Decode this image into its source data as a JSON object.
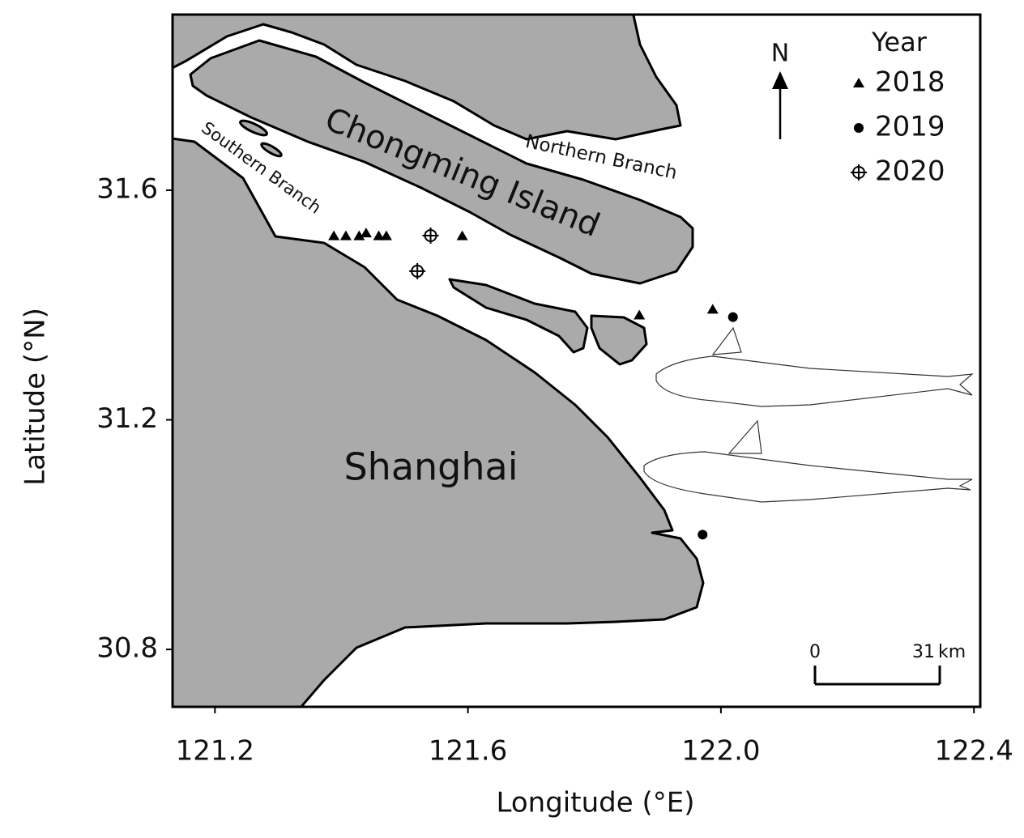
{
  "chart_data": {
    "type": "scatter",
    "x_label": "Longitude (°E)",
    "y_label": "Latitude (°N)",
    "xlim": [
      121.133,
      122.41
    ],
    "ylim": [
      30.7,
      31.906
    ],
    "xticks": [
      121.2,
      121.6,
      {
        "value": 122,
        "label": "122.0"
      },
      122.4
    ],
    "yticks": [
      30.8,
      31.2,
      31.6
    ],
    "legend_title": "Year",
    "legend": "upper right",
    "series": [
      {
        "name": "2018",
        "color": "#000000",
        "marker": "triangle",
        "x": [
          121.388,
          121.407,
          121.428,
          121.439,
          121.459,
          121.471,
          121.591,
          121.871,
          121.987
        ],
        "y": [
          31.52,
          31.52,
          31.52,
          31.525,
          31.52,
          31.52,
          31.52,
          31.382,
          31.392
        ]
      },
      {
        "name": "2019",
        "color": "#000000",
        "marker": "circle",
        "x": [
          122.019,
          121.971
        ],
        "y": [
          31.379,
          31.0
        ]
      },
      {
        "name": "2020",
        "color": "#000000",
        "marker": "crosshair",
        "x": [
          121.541,
          121.52
        ],
        "y": [
          31.521,
          31.459
        ]
      }
    ],
    "annotations": {
      "island": "Chongming Island",
      "northern": "Northern Branch",
      "southern": "Southern Branch",
      "city": "Shanghai",
      "north": "N"
    },
    "scale_bar": {
      "start": "0",
      "end": "31",
      "unit": "km"
    }
  }
}
